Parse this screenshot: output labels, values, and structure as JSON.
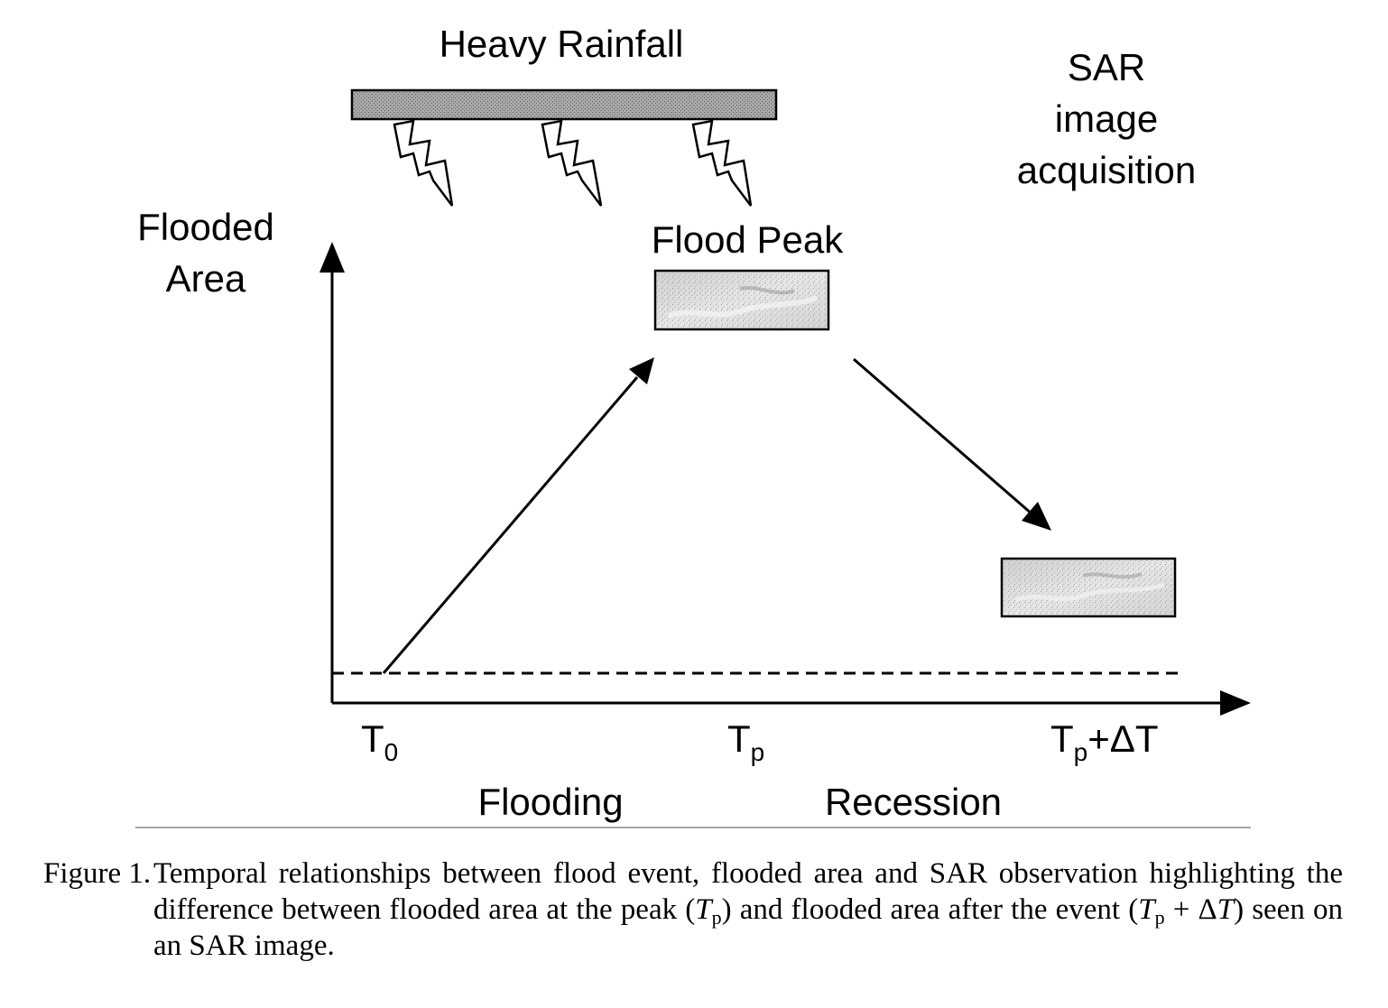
{
  "diagram": {
    "rainfall_label": "Heavy Rainfall",
    "sar_label_lines": [
      "SAR",
      "image",
      "acquisition"
    ],
    "y_axis_label_lines": [
      "Flooded",
      "Area"
    ],
    "peak_label": "Flood Peak",
    "time_labels": [
      {
        "main": "T",
        "sub": "0",
        "suffix": ""
      },
      {
        "main": "T",
        "sub": "p",
        "suffix": ""
      },
      {
        "main": "T",
        "sub": "p",
        "suffix": "+ΔT"
      }
    ],
    "phase_labels": [
      "Flooding",
      "Recession"
    ]
  },
  "caption": {
    "label": "Figure 1.",
    "parts": [
      {
        "text": "Temporal relationships between flood event, flooded area and SAR observation highlighting the difference between flooded area at the peak (",
        "style": "plain"
      },
      {
        "text": "T",
        "style": "italic"
      },
      {
        "text": "p",
        "style": "sub"
      },
      {
        "text": ") and flooded area after the event (",
        "style": "plain"
      },
      {
        "text": "T",
        "style": "italic"
      },
      {
        "text": "p",
        "style": "sub"
      },
      {
        "text": " + Δ",
        "style": "plain"
      },
      {
        "text": "T",
        "style": "italic"
      },
      {
        "text": ") seen on an SAR image.",
        "style": "plain"
      }
    ]
  }
}
